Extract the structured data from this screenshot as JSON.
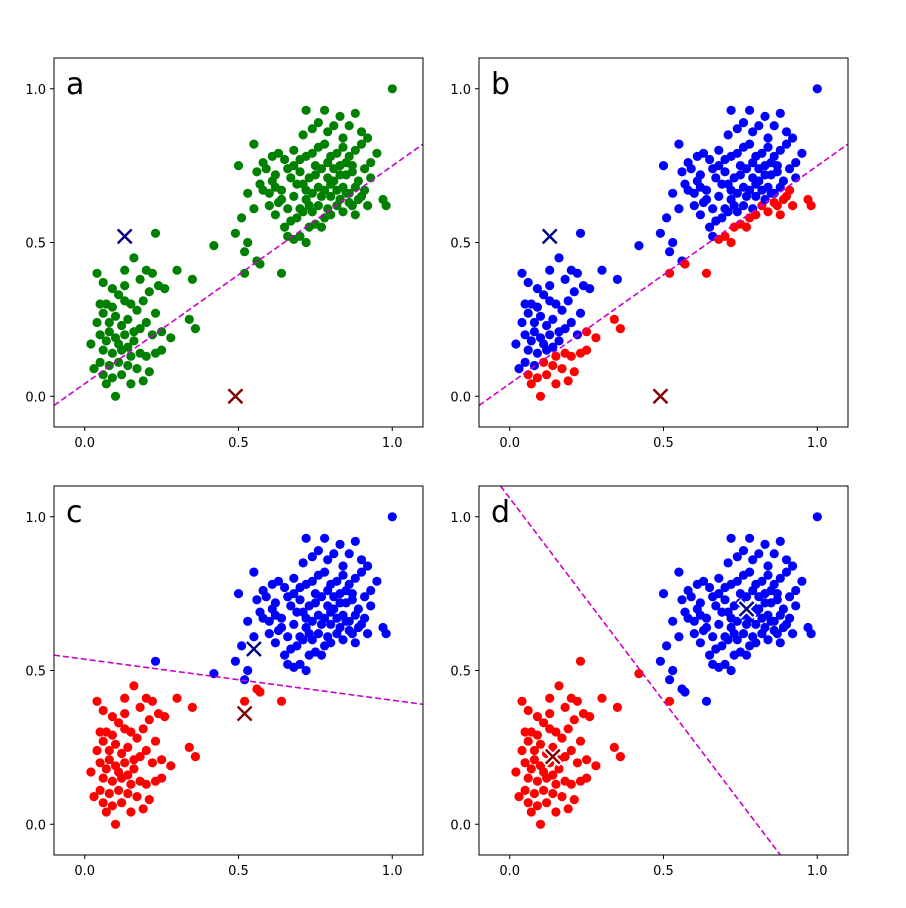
{
  "colors": {
    "green": "#008000",
    "blue": "#0000ff",
    "red": "#ff0000",
    "navy": "#000080",
    "darkred": "#800000",
    "boundary": "#cc00cc"
  },
  "chart_data": [
    {
      "panel": "a",
      "type": "scatter",
      "xlim": [
        -0.1,
        1.1
      ],
      "ylim": [
        -0.1,
        1.1
      ],
      "xticks": [
        "0.0",
        "0.5",
        "1.0"
      ],
      "yticks": [
        "0.0",
        "0.5",
        "1.0"
      ],
      "grid": false,
      "coloring": "single",
      "point_color": "green",
      "centroids": [
        {
          "x": 0.13,
          "y": 0.52,
          "color": "navy",
          "style": "x"
        },
        {
          "x": 0.49,
          "y": 0.0,
          "color": "darkred",
          "style": "x"
        }
      ],
      "boundary": {
        "x": [
          -0.1,
          1.1
        ],
        "y": [
          -0.03,
          0.82
        ],
        "style": "dashed",
        "color": "boundary"
      }
    },
    {
      "panel": "b",
      "type": "scatter",
      "xlim": [
        -0.1,
        1.1
      ],
      "ylim": [
        -0.1,
        1.1
      ],
      "xticks": [
        "0.0",
        "0.5",
        "1.0"
      ],
      "yticks": [
        "0.0",
        "0.5",
        "1.0"
      ],
      "grid": false,
      "coloring": "line",
      "line_for_coloring": {
        "x": [
          -0.1,
          1.1
        ],
        "y": [
          -0.03,
          0.82
        ]
      },
      "above_color": "blue",
      "below_color": "red",
      "centroids": [
        {
          "x": 0.13,
          "y": 0.52,
          "color": "navy",
          "style": "x"
        },
        {
          "x": 0.49,
          "y": 0.0,
          "color": "darkred",
          "style": "x"
        }
      ],
      "boundary": {
        "x": [
          -0.1,
          1.1
        ],
        "y": [
          -0.03,
          0.82
        ],
        "style": "dashed",
        "color": "boundary"
      }
    },
    {
      "panel": "c",
      "type": "scatter",
      "xlim": [
        -0.1,
        1.1
      ],
      "ylim": [
        -0.1,
        1.1
      ],
      "xticks": [
        "0.0",
        "0.5",
        "1.0"
      ],
      "yticks": [
        "0.0",
        "0.5",
        "1.0"
      ],
      "grid": false,
      "coloring": "line",
      "line_for_coloring": {
        "x": [
          -0.1,
          1.1
        ],
        "y": [
          0.55,
          0.39
        ]
      },
      "above_color": "blue",
      "below_color": "red",
      "centroids": [
        {
          "x": 0.55,
          "y": 0.57,
          "color": "navy",
          "style": "x"
        },
        {
          "x": 0.52,
          "y": 0.36,
          "color": "darkred",
          "style": "x"
        }
      ],
      "boundary": {
        "x": [
          -0.1,
          1.1
        ],
        "y": [
          0.55,
          0.39
        ],
        "style": "dashed",
        "color": "boundary"
      }
    },
    {
      "panel": "d",
      "type": "scatter",
      "xlim": [
        -0.1,
        1.1
      ],
      "ylim": [
        -0.1,
        1.1
      ],
      "xticks": [
        "0.0",
        "0.5",
        "1.0"
      ],
      "yticks": [
        "0.0",
        "0.5",
        "1.0"
      ],
      "grid": false,
      "coloring": "cluster",
      "above_color": "blue",
      "below_color": "red",
      "centroids": [
        {
          "x": 0.77,
          "y": 0.7,
          "color": "navy",
          "style": "x-white"
        },
        {
          "x": 0.14,
          "y": 0.22,
          "color": "darkred",
          "style": "x-white"
        }
      ],
      "boundary": {
        "x": [
          -0.03,
          0.88
        ],
        "y": [
          1.1,
          -0.1
        ],
        "style": "dashed",
        "color": "boundary"
      }
    }
  ],
  "points": [
    [
      0.04,
      0.4
    ],
    [
      0.06,
      0.37
    ],
    [
      0.09,
      0.35
    ],
    [
      0.13,
      0.41
    ],
    [
      0.16,
      0.45
    ],
    [
      0.2,
      0.41
    ],
    [
      0.22,
      0.4
    ],
    [
      0.18,
      0.38
    ],
    [
      0.11,
      0.33
    ],
    [
      0.07,
      0.3
    ],
    [
      0.05,
      0.3
    ],
    [
      0.09,
      0.29
    ],
    [
      0.13,
      0.31
    ],
    [
      0.15,
      0.3
    ],
    [
      0.19,
      0.31
    ],
    [
      0.21,
      0.34
    ],
    [
      0.24,
      0.36
    ],
    [
      0.26,
      0.35
    ],
    [
      0.3,
      0.41
    ],
    [
      0.23,
      0.53
    ],
    [
      0.35,
      0.38
    ],
    [
      0.42,
      0.49
    ],
    [
      0.06,
      0.27
    ],
    [
      0.1,
      0.26
    ],
    [
      0.14,
      0.25
    ],
    [
      0.12,
      0.23
    ],
    [
      0.08,
      0.21
    ],
    [
      0.05,
      0.2
    ],
    [
      0.07,
      0.18
    ],
    [
      0.1,
      0.19
    ],
    [
      0.13,
      0.2
    ],
    [
      0.16,
      0.21
    ],
    [
      0.18,
      0.22
    ],
    [
      0.22,
      0.2
    ],
    [
      0.25,
      0.21
    ],
    [
      0.28,
      0.19
    ],
    [
      0.34,
      0.25
    ],
    [
      0.36,
      0.22
    ],
    [
      0.02,
      0.17
    ],
    [
      0.06,
      0.15
    ],
    [
      0.09,
      0.14
    ],
    [
      0.12,
      0.15
    ],
    [
      0.15,
      0.13
    ],
    [
      0.18,
      0.14
    ],
    [
      0.2,
      0.13
    ],
    [
      0.23,
      0.14
    ],
    [
      0.05,
      0.11
    ],
    [
      0.08,
      0.1
    ],
    [
      0.11,
      0.11
    ],
    [
      0.14,
      0.1
    ],
    [
      0.17,
      0.09
    ],
    [
      0.21,
      0.08
    ],
    [
      0.06,
      0.07
    ],
    [
      0.09,
      0.06
    ],
    [
      0.12,
      0.07
    ],
    [
      0.07,
      0.04
    ],
    [
      0.1,
      0.0
    ],
    [
      0.15,
      0.04
    ],
    [
      0.19,
      0.05
    ],
    [
      0.11,
      0.17
    ],
    [
      0.08,
      0.24
    ],
    [
      0.17,
      0.28
    ],
    [
      0.04,
      0.24
    ],
    [
      0.2,
      0.24
    ],
    [
      0.13,
      0.36
    ],
    [
      0.03,
      0.09
    ],
    [
      0.25,
      0.15
    ],
    [
      0.16,
      0.18
    ],
    [
      0.23,
      0.27
    ],
    [
      0.14,
      0.16
    ],
    [
      0.5,
      0.75
    ],
    [
      0.53,
      0.66
    ],
    [
      0.55,
      0.82
    ],
    [
      0.58,
      0.76
    ],
    [
      0.61,
      0.7
    ],
    [
      0.64,
      0.67
    ],
    [
      0.66,
      0.74
    ],
    [
      0.68,
      0.8
    ],
    [
      0.7,
      0.77
    ],
    [
      0.71,
      0.85
    ],
    [
      0.72,
      0.93
    ],
    [
      0.74,
      0.87
    ],
    [
      0.76,
      0.89
    ],
    [
      0.78,
      0.93
    ],
    [
      0.79,
      0.86
    ],
    [
      0.81,
      0.88
    ],
    [
      0.83,
      0.91
    ],
    [
      0.84,
      0.84
    ],
    [
      0.86,
      0.88
    ],
    [
      0.88,
      0.92
    ],
    [
      0.9,
      0.86
    ],
    [
      0.92,
      0.84
    ],
    [
      1.0,
      1.0
    ],
    [
      0.6,
      0.62
    ],
    [
      0.62,
      0.59
    ],
    [
      0.64,
      0.64
    ],
    [
      0.66,
      0.61
    ],
    [
      0.68,
      0.65
    ],
    [
      0.7,
      0.61
    ],
    [
      0.72,
      0.64
    ],
    [
      0.74,
      0.6
    ],
    [
      0.76,
      0.62
    ],
    [
      0.78,
      0.58
    ],
    [
      0.8,
      0.65
    ],
    [
      0.82,
      0.62
    ],
    [
      0.84,
      0.6
    ],
    [
      0.86,
      0.63
    ],
    [
      0.88,
      0.59
    ],
    [
      0.9,
      0.65
    ],
    [
      0.92,
      0.62
    ],
    [
      0.97,
      0.64
    ],
    [
      0.98,
      0.62
    ],
    [
      0.66,
      0.52
    ],
    [
      0.68,
      0.51
    ],
    [
      0.7,
      0.52
    ],
    [
      0.72,
      0.5
    ],
    [
      0.73,
      0.55
    ],
    [
      0.75,
      0.56
    ],
    [
      0.67,
      0.57
    ],
    [
      0.65,
      0.55
    ],
    [
      0.69,
      0.58
    ],
    [
      0.71,
      0.69
    ],
    [
      0.73,
      0.71
    ],
    [
      0.75,
      0.72
    ],
    [
      0.77,
      0.74
    ],
    [
      0.79,
      0.71
    ],
    [
      0.81,
      0.7
    ],
    [
      0.83,
      0.72
    ],
    [
      0.85,
      0.76
    ],
    [
      0.87,
      0.73
    ],
    [
      0.89,
      0.7
    ],
    [
      0.91,
      0.74
    ],
    [
      0.93,
      0.76
    ],
    [
      0.95,
      0.79
    ],
    [
      0.62,
      0.72
    ],
    [
      0.6,
      0.66
    ],
    [
      0.57,
      0.69
    ],
    [
      0.55,
      0.61
    ],
    [
      0.51,
      0.58
    ],
    [
      0.49,
      0.53
    ],
    [
      0.53,
      0.5
    ],
    [
      0.56,
      0.44
    ],
    [
      0.52,
      0.4
    ],
    [
      0.57,
      0.43
    ],
    [
      0.52,
      0.47
    ],
    [
      0.64,
      0.4
    ],
    [
      0.72,
      0.67
    ],
    [
      0.74,
      0.66
    ],
    [
      0.76,
      0.68
    ],
    [
      0.78,
      0.67
    ],
    [
      0.8,
      0.69
    ],
    [
      0.82,
      0.67
    ],
    [
      0.84,
      0.68
    ],
    [
      0.86,
      0.66
    ],
    [
      0.88,
      0.68
    ],
    [
      0.7,
      0.73
    ],
    [
      0.72,
      0.78
    ],
    [
      0.74,
      0.79
    ],
    [
      0.76,
      0.81
    ],
    [
      0.78,
      0.82
    ],
    [
      0.8,
      0.78
    ],
    [
      0.82,
      0.79
    ],
    [
      0.84,
      0.81
    ],
    [
      0.86,
      0.78
    ],
    [
      0.88,
      0.8
    ],
    [
      0.9,
      0.82
    ],
    [
      0.63,
      0.79
    ],
    [
      0.65,
      0.77
    ],
    [
      0.67,
      0.71
    ],
    [
      0.69,
      0.69
    ],
    [
      0.59,
      0.74
    ],
    [
      0.61,
      0.78
    ],
    [
      0.81,
      0.74
    ],
    [
      0.83,
      0.75
    ],
    [
      0.85,
      0.72
    ],
    [
      0.87,
      0.75
    ],
    [
      0.73,
      0.62
    ],
    [
      0.77,
      0.65
    ],
    [
      0.79,
      0.61
    ],
    [
      0.83,
      0.64
    ],
    [
      0.85,
      0.66
    ],
    [
      0.87,
      0.62
    ],
    [
      0.89,
      0.64
    ],
    [
      0.91,
      0.67
    ],
    [
      0.93,
      0.71
    ],
    [
      0.63,
      0.63
    ],
    [
      0.75,
      0.75
    ],
    [
      0.79,
      0.76
    ],
    [
      0.71,
      0.6
    ],
    [
      0.77,
      0.55
    ],
    [
      0.8,
      0.59
    ],
    [
      0.68,
      0.75
    ],
    [
      0.58,
      0.67
    ],
    [
      0.56,
      0.73
    ],
    [
      0.62,
      0.68
    ]
  ]
}
